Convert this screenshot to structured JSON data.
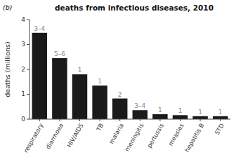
{
  "chart_data": {
    "type": "bar",
    "title": "deaths from infectious diseases, 2010",
    "panel_label": "(b)",
    "categories": [
      "respiratory",
      "diarrhoea",
      "HIV/AIDS",
      "TB",
      "malaria",
      "meningitis",
      "pertussis",
      "measles",
      "hepatitis B",
      "STD"
    ],
    "values": [
      3.47,
      2.45,
      1.8,
      1.35,
      0.83,
      0.36,
      0.2,
      0.16,
      0.12,
      0.12
    ],
    "annotations": [
      "3–4",
      "5–6",
      "1",
      "1",
      "2",
      "3–4",
      "1",
      "1",
      "1",
      "1"
    ],
    "color": "#1a1a1a",
    "y_label": "deaths (millions)",
    "ylim": [
      0,
      4.0
    ],
    "yticks": [
      0,
      1,
      2,
      3,
      4
    ],
    "grid": false
  }
}
